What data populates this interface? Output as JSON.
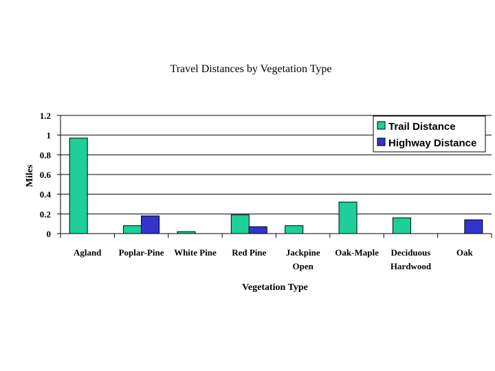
{
  "chart_data": {
    "type": "bar",
    "title": "Travel Distances by Vegetation Type",
    "xlabel": "Vegetation Type",
    "ylabel": "Miles",
    "ylim": [
      0,
      1.2
    ],
    "yticks": [
      "0",
      "0.2",
      "0.4",
      "0.6",
      "0.8",
      "1",
      "1.2"
    ],
    "grid": true,
    "legend": "top-right",
    "categories": [
      [
        "Agland"
      ],
      [
        "Poplar-Pine"
      ],
      [
        "White Pine"
      ],
      [
        "Red Pine"
      ],
      [
        "Jackpine",
        "Open"
      ],
      [
        "Oak-Maple"
      ],
      [
        "Deciduous",
        "Hardwood"
      ],
      [
        "Oak"
      ]
    ],
    "series": [
      {
        "name": "Trail Distance",
        "color": "#1fcf9a",
        "values": [
          0.97,
          0.08,
          0.02,
          0.19,
          0.08,
          0.32,
          0.16,
          0
        ]
      },
      {
        "name": "Highway Distance",
        "color": "#3333cc",
        "values": [
          0,
          0.18,
          0,
          0.07,
          0,
          0,
          0,
          0.14
        ]
      }
    ]
  }
}
